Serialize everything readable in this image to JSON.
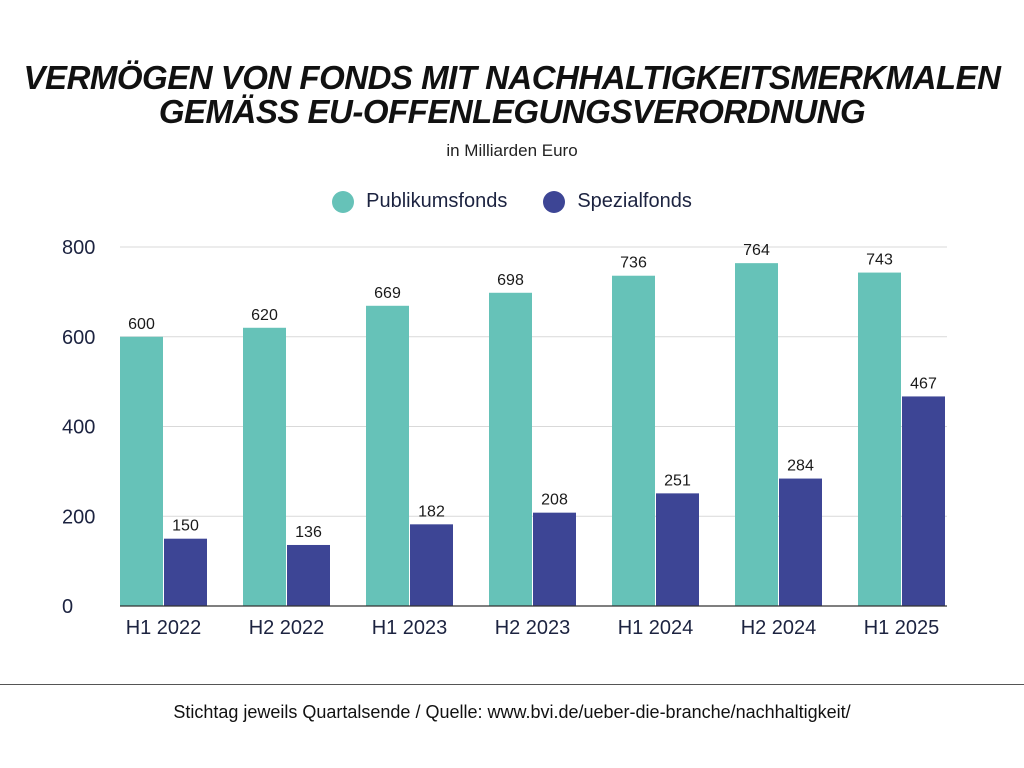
{
  "header": {
    "title_line1": "VERMÖGEN VON FONDS MIT NACHHALTIGKEITSMERKMALEN",
    "title_line2": "GEMÄSS EU-OFFENLEGUNGSVERORDNUNG",
    "subtitle": "in Milliarden Euro"
  },
  "footer": {
    "text": "Stichtag jeweils Quartalsende / Quelle: www.bvi.de/ueber-die-branche/nachhaltigkeit/"
  },
  "colors": {
    "publikumsfonds": "#66c2b8",
    "spezialfonds": "#3d4595",
    "gridline": "#d9d9d9",
    "baseline": "#333333"
  },
  "chart_data": {
    "type": "bar",
    "categories": [
      "H1 2022",
      "H2 2022",
      "H1 2023",
      "H2 2023",
      "H1 2024",
      "H2 2024",
      "H1 2025"
    ],
    "series": [
      {
        "name": "Publikumsfonds",
        "values": [
          600,
          620,
          669,
          698,
          736,
          764,
          743
        ]
      },
      {
        "name": "Spezialfonds",
        "values": [
          150,
          136,
          182,
          208,
          251,
          284,
          467
        ]
      }
    ],
    "title": "VERMÖGEN VON FONDS MIT NACHHALTIGKEITSMERKMALEN GEMÄSS EU-OFFENLEGUNGSVERORDNUNG",
    "subtitle": "in Milliarden Euro",
    "ylim": [
      0,
      800
    ],
    "yticks": [
      0,
      200,
      400,
      600,
      800
    ],
    "grid": true,
    "legend_position": "top-center",
    "data_labels": true
  }
}
